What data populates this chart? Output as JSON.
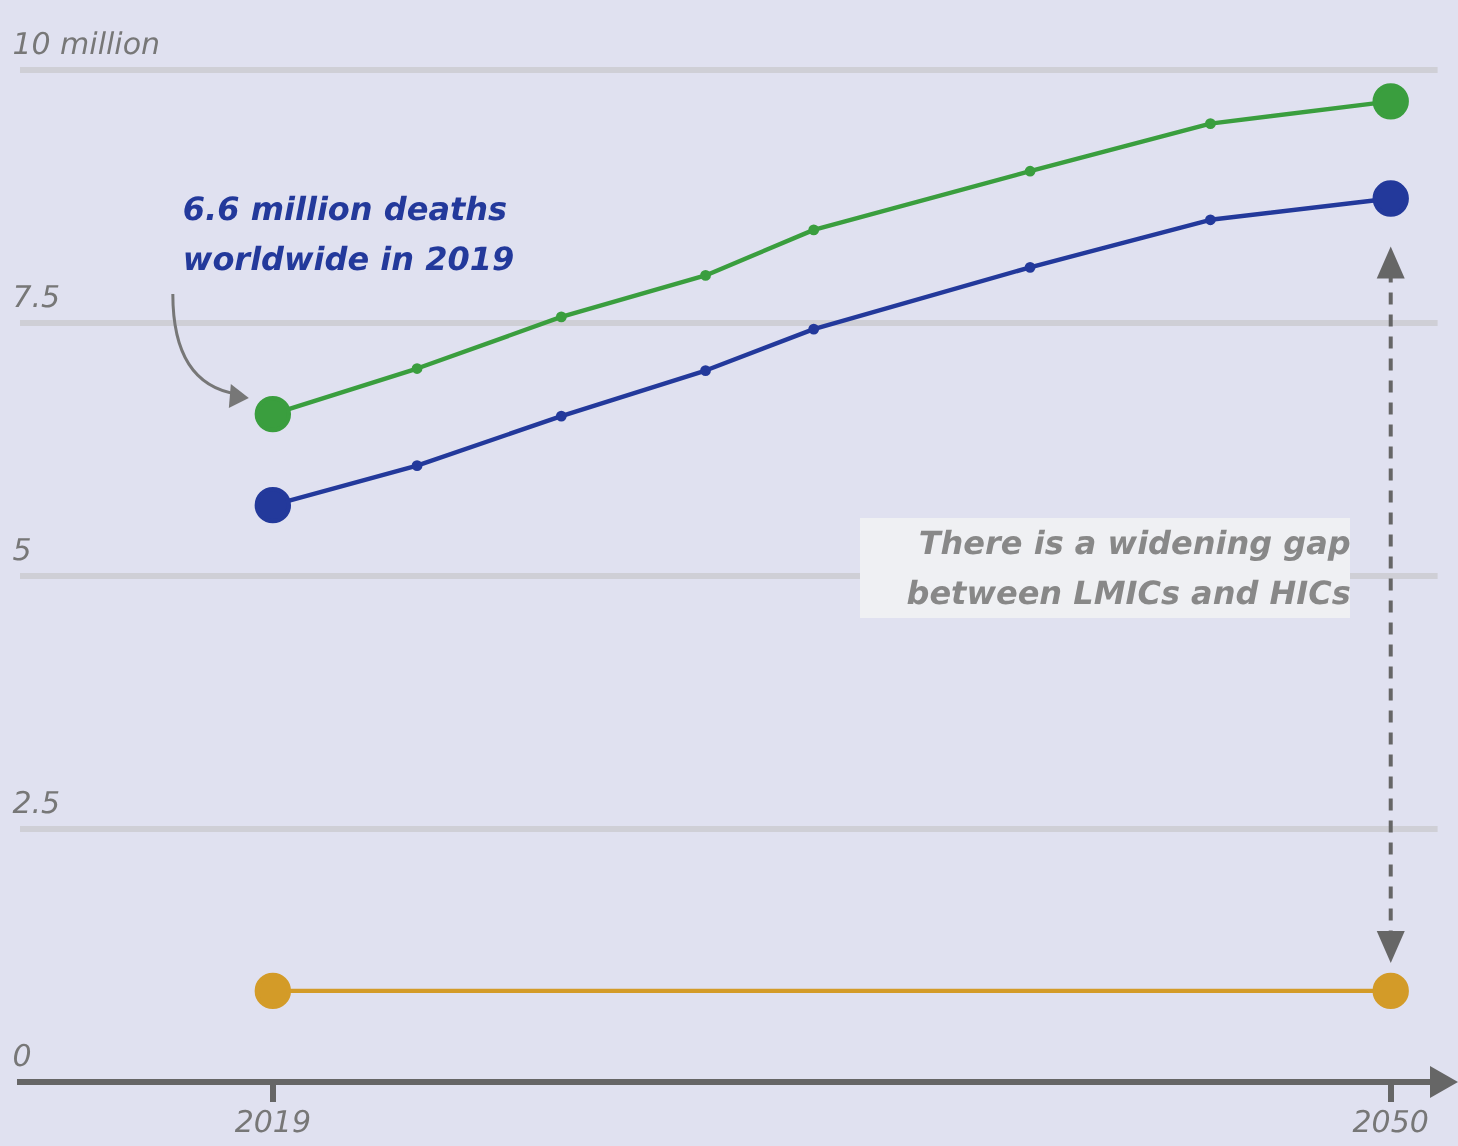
{
  "chart_data": {
    "type": "line",
    "x": [
      2019,
      2023,
      2027,
      2031,
      2034,
      2040,
      2045,
      2050
    ],
    "series": [
      {
        "color": "#3a9e3e",
        "values": [
          6.6,
          7.05,
          7.56,
          7.97,
          8.42,
          9.0,
          9.47,
          9.69
        ]
      },
      {
        "color": "#23399b",
        "values": [
          5.7,
          6.09,
          6.58,
          7.03,
          7.44,
          8.05,
          8.52,
          8.73
        ]
      },
      {
        "color": "#d39b28",
        "x": [
          2019,
          2050
        ],
        "values": [
          0.9,
          0.9
        ]
      }
    ],
    "xlim": [
      2012,
      2051.3
    ],
    "xticks": [
      2019,
      2050
    ],
    "ylim": [
      0,
      10
    ],
    "yticks": [
      0,
      2.5,
      5,
      7.5,
      {
        "value": 10,
        "label": "10 million"
      }
    ],
    "grid": "y",
    "marker": "circle",
    "line_style": "solid",
    "legend": false,
    "annotations": [
      "6.6 million deaths worldwide in 2019",
      "There is a widening gap between LMICs and HICs"
    ]
  }
}
